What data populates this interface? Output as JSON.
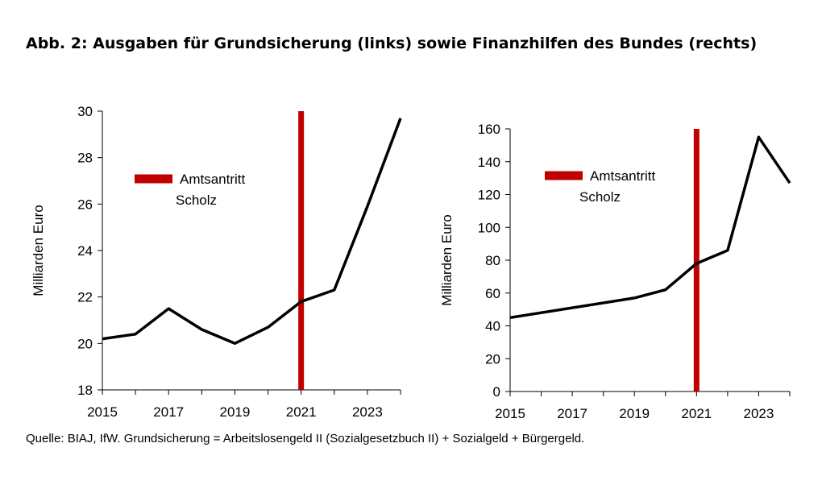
{
  "title": "Abb. 2: Ausgaben für Grundsicherung (links) sowie Finanzhilfen des Bundes (rechts)",
  "source": "Quelle: BIAJ, IfW. Grundsicherung = Arbeitslosengeld II (Sozialgesetzbuch II) + Sozialgeld + Bürgergeld.",
  "colors": {
    "line": "#000000",
    "marker": "#c00000",
    "axis": "#000000"
  },
  "chart_data": [
    {
      "type": "line",
      "ylabel": "Milliarden Euro",
      "xlabel": "",
      "ylim": [
        18,
        30
      ],
      "yticks": [
        18,
        20,
        22,
        24,
        26,
        28,
        30
      ],
      "xlim": [
        2015,
        2024
      ],
      "xticks": [
        2015,
        2017,
        2019,
        2021,
        2023
      ],
      "grid": false,
      "series": [
        {
          "x": [
            2015,
            2016,
            2017,
            2018,
            2019,
            2020,
            2021,
            2022,
            2023,
            2024
          ],
          "values": [
            20.2,
            20.4,
            21.5,
            20.6,
            20.0,
            20.7,
            21.8,
            22.3,
            25.9,
            29.7
          ]
        }
      ],
      "marker": {
        "x": 2021,
        "label_line1": "Amtsantritt",
        "label_line2": "Scholz"
      }
    },
    {
      "type": "line",
      "ylabel": "Milliarden Euro",
      "xlabel": "",
      "ylim": [
        0,
        160
      ],
      "yticks": [
        0,
        20,
        40,
        60,
        80,
        100,
        120,
        140,
        160
      ],
      "xlim": [
        2015,
        2024
      ],
      "xticks": [
        2015,
        2017,
        2019,
        2021,
        2023
      ],
      "grid": false,
      "series": [
        {
          "x": [
            2015,
            2019,
            2020,
            2021,
            2022,
            2023,
            2024
          ],
          "values": [
            45,
            57,
            62,
            78,
            86,
            155,
            127
          ]
        }
      ],
      "marker": {
        "x": 2021,
        "label_line1": "Amtsantritt",
        "label_line2": "Scholz"
      }
    }
  ]
}
